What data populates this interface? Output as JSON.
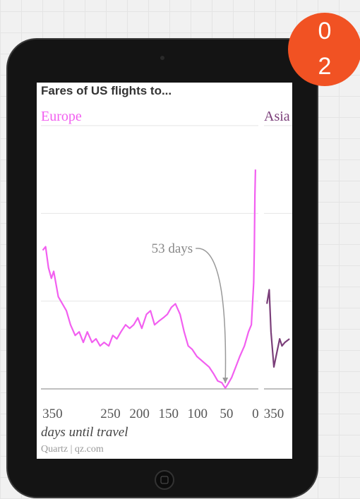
{
  "title": "Fares of US flights to...",
  "x_label": "days until travel",
  "source": "Quartz | qz.com",
  "badge": [
    "0",
    "2"
  ],
  "chart_data": [
    {
      "type": "line",
      "subtitle": "Europe",
      "color": "#f25ff0",
      "xlim": [
        370,
        -5
      ],
      "ylim": [
        0,
        3
      ],
      "xticks": [
        350,
        250,
        200,
        150,
        100,
        50,
        0
      ],
      "x": [
        367,
        362,
        357,
        352,
        348,
        340,
        333,
        326,
        319,
        311,
        304,
        297,
        290,
        282,
        275,
        268,
        261,
        253,
        246,
        239,
        232,
        224,
        217,
        210,
        203,
        196,
        188,
        181,
        174,
        167,
        159,
        152,
        145,
        138,
        130,
        123,
        116,
        109,
        101,
        94,
        87,
        80,
        72,
        65,
        58,
        52,
        48,
        41,
        34,
        27,
        19,
        12,
        7,
        3,
        2,
        1,
        0
      ],
      "values": [
        1.58,
        1.62,
        1.38,
        1.26,
        1.34,
        1.05,
        0.97,
        0.89,
        0.73,
        0.61,
        0.65,
        0.53,
        0.65,
        0.53,
        0.57,
        0.49,
        0.53,
        0.49,
        0.61,
        0.57,
        0.65,
        0.73,
        0.69,
        0.73,
        0.81,
        0.69,
        0.85,
        0.89,
        0.73,
        0.77,
        0.81,
        0.85,
        0.93,
        0.97,
        0.85,
        0.65,
        0.49,
        0.45,
        0.37,
        0.33,
        0.29,
        0.25,
        0.17,
        0.09,
        0.07,
        0.01,
        0.05,
        0.13,
        0.25,
        0.37,
        0.49,
        0.65,
        0.73,
        1.21,
        1.6,
        2.2,
        2.5
      ],
      "annotation": {
        "text": "53 days",
        "x": 52
      }
    },
    {
      "type": "line",
      "subtitle": "Asia",
      "color": "#7b3f7a",
      "xlim": [
        367,
        -8
      ],
      "ylim": [
        0,
        3
      ],
      "xticks": [
        350
      ],
      "x": [
        362,
        358,
        355,
        350,
        345,
        340,
        336,
        331,
        323
      ],
      "values": [
        0.97,
        1.13,
        0.65,
        0.25,
        0.41,
        0.57,
        0.49,
        0.53,
        0.57
      ]
    }
  ]
}
